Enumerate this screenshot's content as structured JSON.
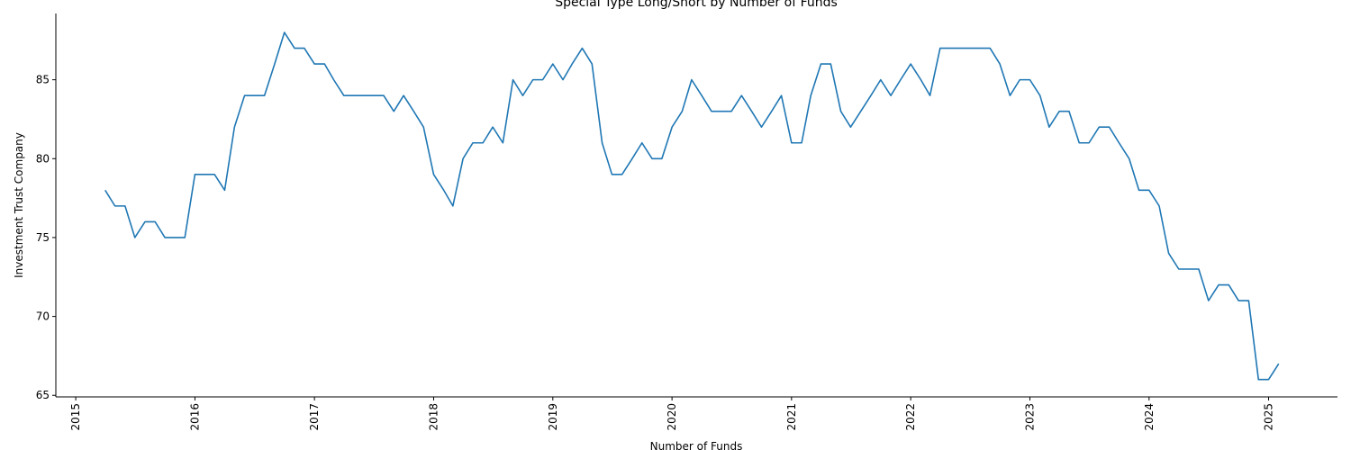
{
  "chart_data": {
    "type": "line",
    "title": "Special Type Long/Short by Number of Funds",
    "xlabel": "Number of Funds",
    "ylabel": "Investment Trust Company",
    "xlim": [
      "2014-11-01",
      "2025-07-31"
    ],
    "ylim": [
      64.9,
      89.2
    ],
    "x_ticks": [
      "2015",
      "2016",
      "2017",
      "2018",
      "2019",
      "2020",
      "2021",
      "2022",
      "2023",
      "2024",
      "2025"
    ],
    "y_ticks": [
      65,
      70,
      75,
      80,
      85
    ],
    "grid": false,
    "color": "#1f77b4",
    "series": [
      {
        "x": [
          "2015-04",
          "2015-05",
          "2015-06",
          "2015-07",
          "2015-08",
          "2015-09",
          "2015-10",
          "2015-11",
          "2015-12",
          "2016-01",
          "2016-02",
          "2016-03",
          "2016-04",
          "2016-05",
          "2016-06",
          "2016-07",
          "2016-08",
          "2016-09",
          "2016-10",
          "2016-11",
          "2016-12",
          "2017-01",
          "2017-02",
          "2017-03",
          "2017-04",
          "2017-05",
          "2017-06",
          "2017-07",
          "2017-08",
          "2017-09",
          "2017-10",
          "2017-11",
          "2017-12",
          "2018-01",
          "2018-02",
          "2018-03",
          "2018-04",
          "2018-05",
          "2018-06",
          "2018-07",
          "2018-08",
          "2018-09",
          "2018-10",
          "2018-11",
          "2018-12",
          "2019-01",
          "2019-02",
          "2019-03",
          "2019-04",
          "2019-05",
          "2019-06",
          "2019-07",
          "2019-08",
          "2019-09",
          "2019-10",
          "2019-11",
          "2019-12",
          "2020-01",
          "2020-02",
          "2020-03",
          "2020-04",
          "2020-05",
          "2020-06",
          "2020-07",
          "2020-08",
          "2020-09",
          "2020-10",
          "2020-11",
          "2020-12",
          "2021-01",
          "2021-02",
          "2021-03",
          "2021-04",
          "2021-05",
          "2021-06",
          "2021-07",
          "2021-08",
          "2021-09",
          "2021-10",
          "2021-11",
          "2021-12",
          "2022-01",
          "2022-02",
          "2022-03",
          "2022-04",
          "2022-05",
          "2022-06",
          "2022-07",
          "2022-08",
          "2022-09",
          "2022-10",
          "2022-11",
          "2022-12",
          "2023-01",
          "2023-02",
          "2023-03",
          "2023-04",
          "2023-05",
          "2023-06",
          "2023-07",
          "2023-08",
          "2023-09",
          "2023-10",
          "2023-11",
          "2023-12",
          "2024-01",
          "2024-02",
          "2024-03",
          "2024-04",
          "2024-05",
          "2024-06",
          "2024-07",
          "2024-08",
          "2024-09",
          "2024-10",
          "2024-11",
          "2024-12",
          "2025-01",
          "2025-02"
        ],
        "values": [
          78,
          77,
          77,
          75,
          76,
          76,
          75,
          75,
          75,
          79,
          79,
          79,
          78,
          82,
          84,
          84,
          84,
          86,
          88,
          87,
          87,
          86,
          86,
          85,
          84,
          84,
          84,
          84,
          84,
          83,
          84,
          83,
          82,
          79,
          78,
          77,
          80,
          81,
          81,
          82,
          81,
          85,
          84,
          85,
          85,
          86,
          85,
          86,
          87,
          86,
          81,
          79,
          79,
          80,
          81,
          80,
          80,
          82,
          83,
          85,
          84,
          83,
          83,
          83,
          84,
          83,
          82,
          83,
          84,
          81,
          81,
          84,
          86,
          86,
          83,
          82,
          83,
          84,
          85,
          84,
          85,
          86,
          85,
          84,
          87,
          87,
          87,
          87,
          87,
          87,
          86,
          84,
          85,
          85,
          84,
          82,
          83,
          83,
          81,
          81,
          82,
          82,
          81,
          80,
          78,
          78,
          77,
          74,
          73,
          73,
          73,
          71,
          72,
          72,
          71,
          71,
          66,
          66,
          67
        ]
      }
    ]
  }
}
